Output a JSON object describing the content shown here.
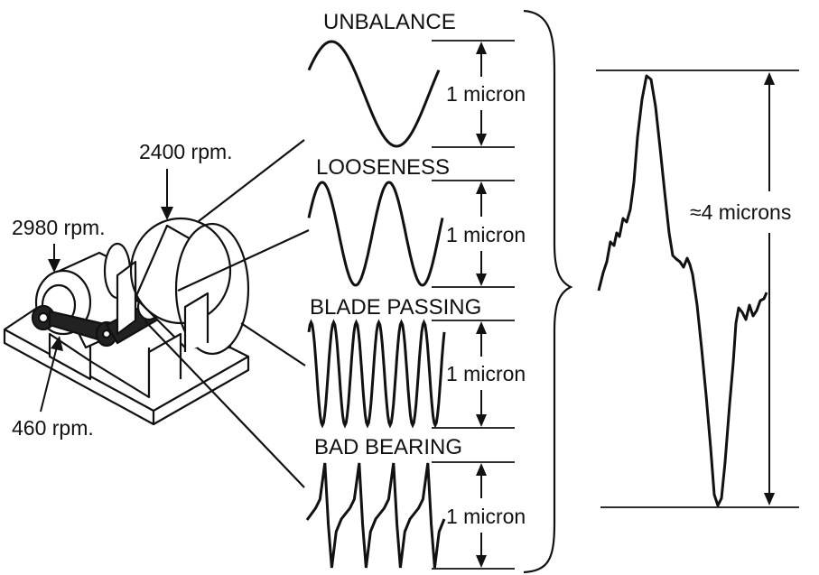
{
  "rpm_labels": {
    "rpm_2400": "2400 rpm.",
    "rpm_2980": "2980 rpm.",
    "rpm_460": "460 rpm."
  },
  "waveforms": [
    {
      "title": "UNBALANCE",
      "amplitude": "1 micron"
    },
    {
      "title": "LOOSENESS",
      "amplitude": "1 micron"
    },
    {
      "title": "BLADE PASSING",
      "amplitude": "1 micron"
    },
    {
      "title": "BAD BEARING",
      "amplitude": "1 micron"
    }
  ],
  "composite": {
    "amplitude": "≈4 microns"
  },
  "colors": {
    "ink": "#111111",
    "background": "#ffffff"
  }
}
